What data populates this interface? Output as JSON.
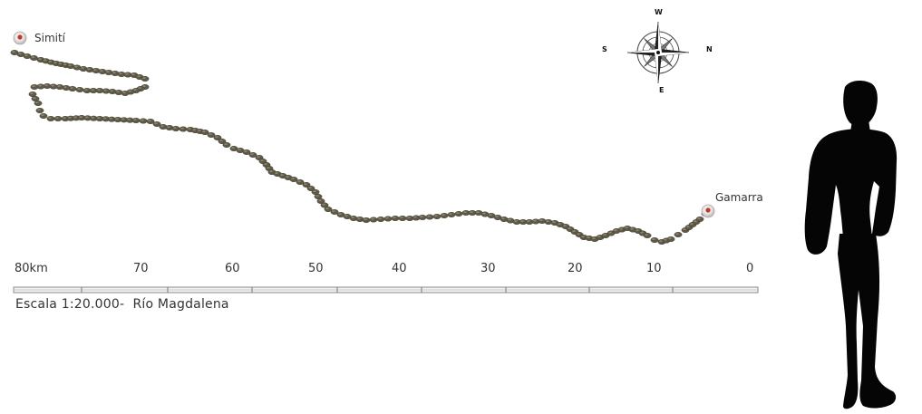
{
  "places": {
    "start": {
      "name": "Simití"
    },
    "end": {
      "name": "Gamarra"
    }
  },
  "compass": {
    "top": "W",
    "bottom": "E",
    "left": "S",
    "right": "N"
  },
  "scale_bar": {
    "ticks": [
      "80km",
      "70",
      "60",
      "50",
      "40",
      "30",
      "20",
      "10",
      "0"
    ],
    "caption": "Escala 1:20.000-  Río Magdalena"
  },
  "colors": {
    "route_dot": "#5f5a48",
    "route_dot_highlight": "#8c8670",
    "marker_red": "#c0392b",
    "silhouette": "#050505"
  },
  "icons": {
    "marker": "map-pin-icon",
    "compass": "compass-rose-icon",
    "figure": "person-silhouette-icon"
  }
}
